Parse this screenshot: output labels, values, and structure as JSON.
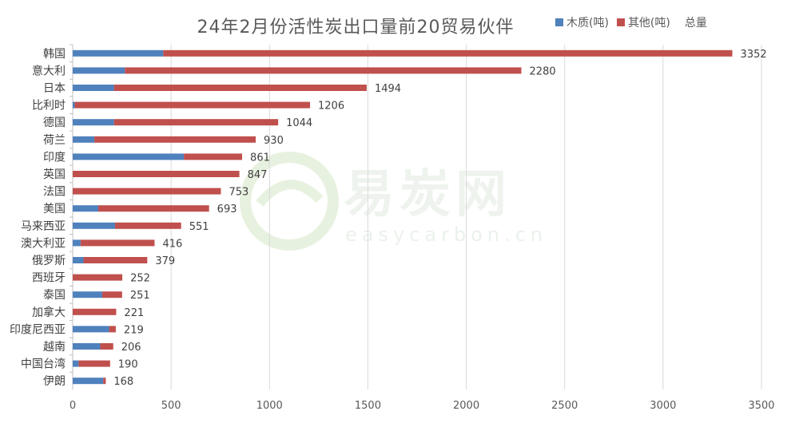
{
  "chart_data": {
    "type": "bar",
    "orientation": "horizontal",
    "stacked": true,
    "title": "24年2月份活性炭出口量前20贸易伙伴",
    "categories": [
      "韩国",
      "意大利",
      "日本",
      "比利时",
      "德国",
      "荷兰",
      "印度",
      "英国",
      "法国",
      "美国",
      "马来西亚",
      "澳大利亚",
      "俄罗斯",
      "西班牙",
      "泰国",
      "加拿大",
      "印度尼西亚",
      "越南",
      "中国台湾",
      "伊朗"
    ],
    "series": [
      {
        "name": "木质(吨)",
        "color": "#4F81BD",
        "values": [
          460,
          265,
          210,
          10,
          210,
          110,
          565,
          0,
          0,
          130,
          215,
          40,
          55,
          0,
          150,
          0,
          185,
          140,
          30,
          155
        ]
      },
      {
        "name": "其他(吨)",
        "color": "#C0504D",
        "values": [
          2892,
          2015,
          1284,
          1196,
          834,
          820,
          296,
          847,
          753,
          563,
          336,
          376,
          324,
          252,
          101,
          221,
          34,
          66,
          160,
          13
        ]
      }
    ],
    "totals_legend": "总量",
    "totals": [
      3352,
      2280,
      1494,
      1206,
      1044,
      930,
      861,
      847,
      753,
      693,
      551,
      416,
      379,
      252,
      251,
      221,
      219,
      206,
      190,
      168
    ],
    "xlim": [
      0,
      3500
    ],
    "xticks": [
      0,
      500,
      1000,
      1500,
      2000,
      2500,
      3000,
      3500
    ],
    "grid": true,
    "legend_position": "top-right"
  },
  "watermark": {
    "main": "易炭网",
    "sub": "easycarbon.cn",
    "logo_icon": "leaf-e-logo"
  }
}
